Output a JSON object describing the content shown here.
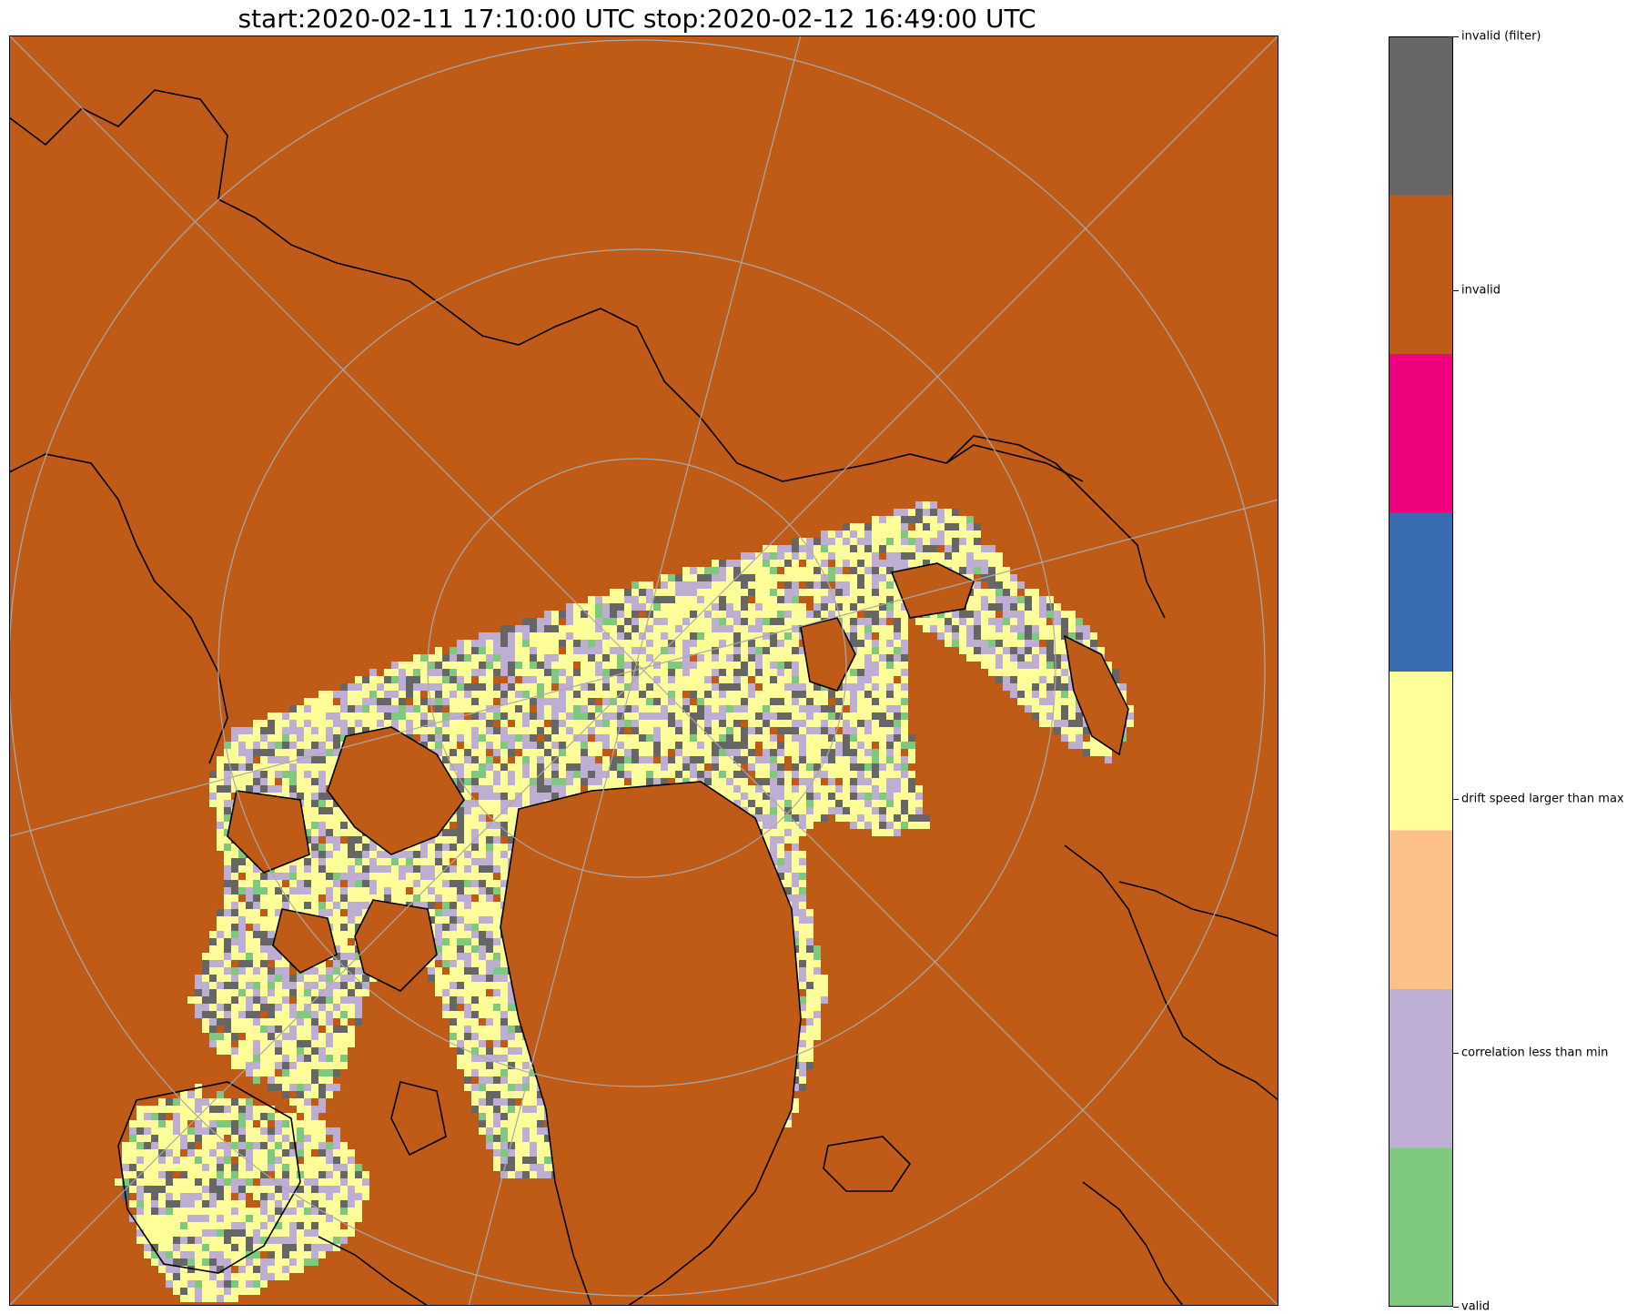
{
  "title": "start:2020-02-11 17:10:00 UTC stop:2020-02-12 16:49:00 UTC",
  "map": {
    "projection": "north polar stereographic",
    "background_class": "invalid",
    "background_color": "#bf5a17",
    "coastline_color": "#000000",
    "graticule_color": "#aaaaaa"
  },
  "legend": {
    "type": "categorical colorbar",
    "segments": [
      {
        "color": "#666666",
        "label": "invalid (filter)"
      },
      {
        "color": "#bf5a17",
        "label": "invalid"
      },
      {
        "color": "#f0027f",
        "label": ""
      },
      {
        "color": "#386cb0",
        "label": ""
      },
      {
        "color": "#ffff99",
        "label": "drift speed larger than max"
      },
      {
        "color": "#fdc086",
        "label": ""
      },
      {
        "color": "#beaed4",
        "label": "correlation less than min"
      },
      {
        "color": "#7fc97f",
        "label": "valid"
      }
    ],
    "tick_labels": [
      "invalid (filter)",
      "invalid",
      "drift speed larger than max",
      "correlation less than min",
      "valid"
    ]
  }
}
